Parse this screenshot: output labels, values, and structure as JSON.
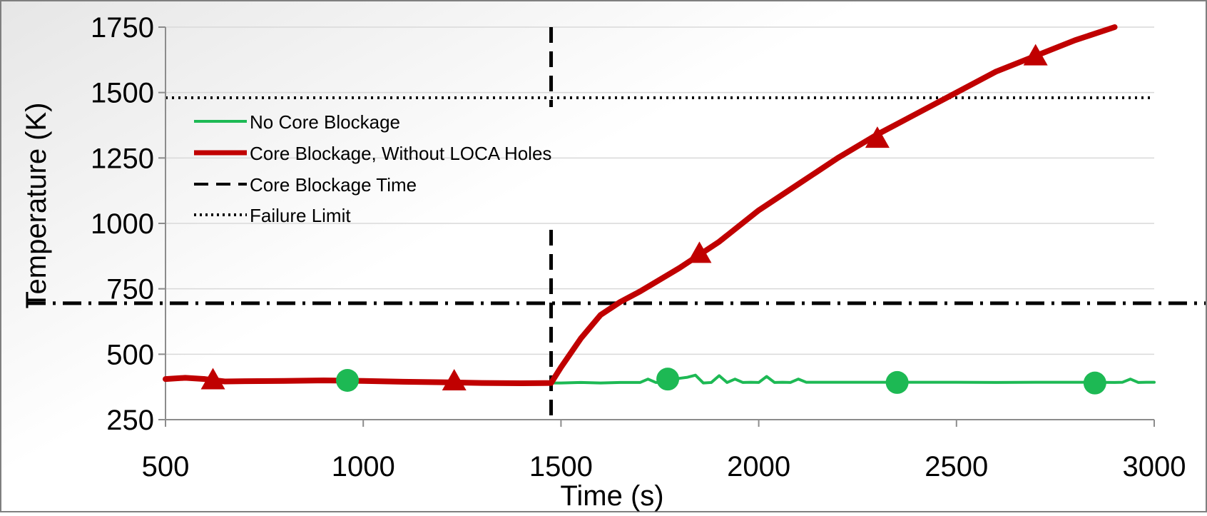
{
  "chart_data": {
    "type": "line",
    "title": "",
    "xlabel": "Time (s)",
    "ylabel": "Temperature (K)",
    "xlim": [
      500,
      3000
    ],
    "ylim": [
      250,
      1750
    ],
    "xticks": [
      500,
      1000,
      1500,
      2000,
      2500,
      3000
    ],
    "yticks": [
      250,
      500,
      750,
      1000,
      1250,
      1500,
      1750
    ],
    "xtick_labels": [
      "500",
      "1000",
      "1500",
      "2000",
      "2500",
      "3000"
    ],
    "ytick_labels": [
      "250",
      "500",
      "750",
      "1000",
      "1250",
      "1500",
      "1750"
    ],
    "grid": "horizontal",
    "legend_position": "upper-left",
    "legend": [
      {
        "label": "No Core Blockage",
        "style": "solid-thin",
        "color": "#1db954"
      },
      {
        "label": "Core Blockage, Without LOCA Holes",
        "style": "solid-thick",
        "color": "#c00000"
      },
      {
        "label": "Core Blockage Time",
        "style": "dashed",
        "color": "#000000"
      },
      {
        "label": "Failure Limit",
        "style": "dotted",
        "color": "#000000"
      }
    ],
    "series": [
      {
        "name": "No Core Blockage",
        "color": "#1db954",
        "marker": "circle",
        "x": [
          1475,
          1500,
          1550,
          1600,
          1650,
          1700,
          1720,
          1740,
          1760,
          1780,
          1800,
          1820,
          1840,
          1860,
          1880,
          1900,
          1920,
          1940,
          1960,
          1980,
          2000,
          2020,
          2040,
          2060,
          2080,
          2100,
          2120,
          2200,
          2300,
          2400,
          2500,
          2600,
          2700,
          2800,
          2900,
          2920,
          2940,
          2960,
          2980,
          3000
        ],
        "y": [
          390,
          390,
          392,
          390,
          392,
          392,
          405,
          392,
          392,
          400,
          408,
          412,
          420,
          390,
          392,
          418,
          392,
          405,
          392,
          393,
          392,
          415,
          392,
          393,
          392,
          405,
          393,
          393,
          393,
          393,
          393,
          392,
          393,
          393,
          392,
          393,
          405,
          392,
          393,
          393
        ],
        "marker_x": [
          960,
          1770,
          2350,
          2850
        ],
        "marker_y": [
          400,
          405,
          392,
          390
        ]
      },
      {
        "name": "Core Blockage, Without LOCA Holes",
        "color": "#c00000",
        "marker": "triangle",
        "x": [
          500,
          550,
          600,
          650,
          700,
          800,
          900,
          1000,
          1100,
          1200,
          1300,
          1400,
          1475,
          1500,
          1550,
          1600,
          1650,
          1700,
          1800,
          1900,
          2000,
          2100,
          2200,
          2300,
          2400,
          2500,
          2600,
          2700,
          2800,
          2900
        ],
        "y": [
          405,
          410,
          405,
          396,
          397,
          398,
          400,
          398,
          395,
          393,
          390,
          389,
          390,
          450,
          560,
          650,
          700,
          740,
          830,
          930,
          1050,
          1150,
          1250,
          1340,
          1420,
          1500,
          1580,
          1640,
          1700,
          1750
        ],
        "marker_x": [
          620,
          1230,
          1850,
          2300,
          2700
        ],
        "marker_y": [
          397,
          393,
          880,
          1320,
          1635
        ]
      }
    ],
    "reference_lines": [
      {
        "name": "Core Blockage Time",
        "orientation": "vertical",
        "value": 1475,
        "style": "dashed"
      },
      {
        "name": "Failure Limit",
        "orientation": "horizontal",
        "value": 1480,
        "style": "dotted"
      },
      {
        "orientation": "horizontal",
        "value": 695,
        "style": "dash-dot"
      }
    ]
  }
}
